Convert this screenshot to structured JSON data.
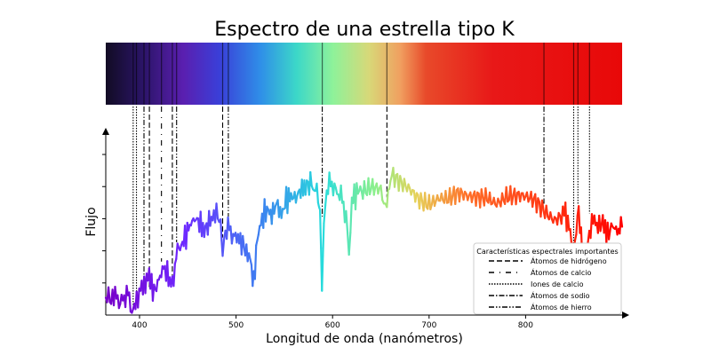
{
  "chart_data": {
    "type": "line",
    "title": "Espectro de una estrella tipo K",
    "xlabel": "Longitud de onda (nanómetros)",
    "ylabel": "Flujo",
    "xlim": [
      365,
      900
    ],
    "ylim": [
      0,
      1.05
    ],
    "x_ticks": [
      400,
      500,
      600,
      700,
      800
    ],
    "y_ticks_labeled": false,
    "colormap": "rainbow (violet to red)",
    "spectrum_band": true,
    "series": [
      {
        "x": [
          365,
          372,
          380,
          388,
          393.4,
          397,
          401,
          406,
          410,
          415,
          420,
          425,
          430,
          434,
          438,
          442,
          447,
          452,
          457,
          462,
          467,
          472,
          477,
          481,
          484,
          486.1,
          489,
          493,
          497,
          502,
          507,
          512,
          516,
          518.4,
          522,
          527,
          532,
          537,
          542,
          547,
          552,
          557,
          562,
          567,
          572,
          577,
          581,
          585,
          587,
          589,
          591,
          594,
          598,
          602,
          606,
          610,
          614,
          617,
          620,
          625,
          630,
          640,
          650,
          656.3,
          660,
          670,
          680,
          690,
          700,
          710,
          720,
          730,
          740,
          750,
          760,
          770,
          780,
          790,
          800,
          810,
          820,
          830,
          840,
          845,
          850,
          855,
          860,
          866,
          870,
          875,
          880,
          885,
          890,
          895,
          900
        ],
        "y": [
          0.08,
          0.12,
          0.06,
          0.14,
          0.03,
          0.1,
          0.16,
          0.2,
          0.24,
          0.14,
          0.22,
          0.3,
          0.24,
          0.17,
          0.36,
          0.42,
          0.48,
          0.56,
          0.6,
          0.58,
          0.52,
          0.58,
          0.62,
          0.6,
          0.55,
          0.45,
          0.52,
          0.56,
          0.5,
          0.48,
          0.44,
          0.38,
          0.28,
          0.2,
          0.48,
          0.6,
          0.66,
          0.62,
          0.7,
          0.62,
          0.72,
          0.74,
          0.73,
          0.78,
          0.8,
          0.82,
          0.79,
          0.76,
          0.62,
          0.1,
          0.58,
          0.78,
          0.85,
          0.8,
          0.78,
          0.74,
          0.6,
          0.42,
          0.72,
          0.76,
          0.8,
          0.82,
          0.78,
          0.7,
          0.85,
          0.8,
          0.78,
          0.74,
          0.72,
          0.74,
          0.71,
          0.73,
          0.72,
          0.74,
          0.76,
          0.72,
          0.74,
          0.72,
          0.71,
          0.7,
          0.66,
          0.62,
          0.65,
          0.55,
          0.4,
          0.66,
          0.3,
          0.52,
          0.6,
          0.55,
          0.58,
          0.5,
          0.56,
          0.52,
          0.55
        ]
      }
    ],
    "legend": {
      "title": "Características espectrales importantes",
      "placement": "lower right",
      "entries": [
        {
          "label": "Átomos de hidrógeno",
          "style": "dashed"
        },
        {
          "label": "Átomos de calcio",
          "style": "loosely-dashdot"
        },
        {
          "label": "Iones de calcio",
          "style": "dotted"
        },
        {
          "label": "Átomos de sodio",
          "style": "dashdot"
        },
        {
          "label": "Átomos de hierro",
          "style": "dashdotdot"
        }
      ]
    },
    "spectral_lines": [
      {
        "wavelength": 393.4,
        "feature": "Iones de calcio"
      },
      {
        "wavelength": 396.8,
        "feature": "Iones de calcio"
      },
      {
        "wavelength": 404.6,
        "feature": "Átomos de hierro"
      },
      {
        "wavelength": 410.2,
        "feature": "Átomos de hidrógeno"
      },
      {
        "wavelength": 422.7,
        "feature": "Átomos de calcio"
      },
      {
        "wavelength": 434.0,
        "feature": "Átomos de hidrógeno"
      },
      {
        "wavelength": 438.4,
        "feature": "Átomos de hierro"
      },
      {
        "wavelength": 486.1,
        "feature": "Átomos de hidrógeno"
      },
      {
        "wavelength": 492.0,
        "feature": "Átomos de hierro"
      },
      {
        "wavelength": 589.3,
        "feature": "Átomos de sodio"
      },
      {
        "wavelength": 656.3,
        "feature": "Átomos de hidrógeno"
      },
      {
        "wavelength": 819.0,
        "feature": "Átomos de sodio"
      },
      {
        "wavelength": 849.8,
        "feature": "Iones de calcio"
      },
      {
        "wavelength": 854.2,
        "feature": "Iones de calcio"
      },
      {
        "wavelength": 866.2,
        "feature": "Iones de calcio"
      }
    ]
  }
}
